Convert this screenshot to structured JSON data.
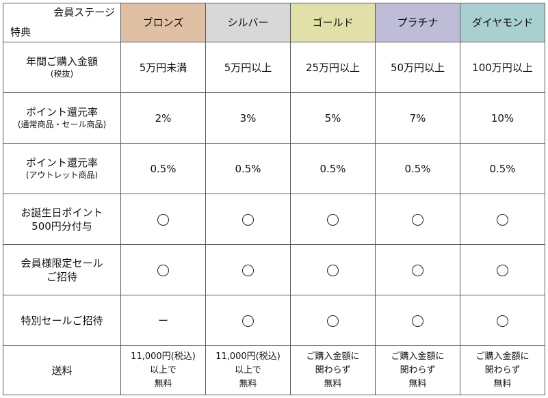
{
  "header": {
    "corner_top": "会員ステージ",
    "corner_bottom": "特典",
    "stages": [
      {
        "label": "ブロンズ",
        "color": "#e0c0a2"
      },
      {
        "label": "シルバー",
        "color": "#d8d8d8"
      },
      {
        "label": "ゴールド",
        "color": "#e0e0a8"
      },
      {
        "label": "プラチナ",
        "color": "#bfbcd8"
      },
      {
        "label": "ダイヤモンド",
        "color": "#a8d0d0"
      }
    ]
  },
  "rows": [
    {
      "label": "年間ご購入金額",
      "sublabel": "(税抜)",
      "values": [
        "5万円未満",
        "5万円以上",
        "25万円以上",
        "50万円以上",
        "100万円以上"
      ]
    },
    {
      "label": "ポイント還元率",
      "sublabel": "(通常商品・セール商品)",
      "values": [
        "2%",
        "3%",
        "5%",
        "7%",
        "10%"
      ]
    },
    {
      "label": "ポイント還元率",
      "sublabel": "(アウトレット商品)",
      "values": [
        "0.5%",
        "0.5%",
        "0.5%",
        "0.5%",
        "0.5%"
      ]
    },
    {
      "label": "お誕生日ポイント",
      "label2": "500円分付与",
      "values": [
        "circle",
        "circle",
        "circle",
        "circle",
        "circle"
      ]
    },
    {
      "label": "会員様限定セール",
      "label2": "ご招待",
      "values": [
        "circle",
        "circle",
        "circle",
        "circle",
        "circle"
      ]
    },
    {
      "label": "特別セールご招待",
      "values": [
        "ー",
        "circle",
        "circle",
        "circle",
        "circle"
      ]
    }
  ],
  "shipping": {
    "label": "送料",
    "values": [
      [
        "11,000円(税込)",
        "以上で",
        "無料"
      ],
      [
        "11,000円(税込)",
        "以上で",
        "無料"
      ],
      [
        "ご購入金額に",
        "関わらず",
        "無料"
      ],
      [
        "ご購入金額に",
        "関わらず",
        "無料"
      ],
      [
        "ご購入金額に",
        "関わらず",
        "無料"
      ]
    ]
  }
}
